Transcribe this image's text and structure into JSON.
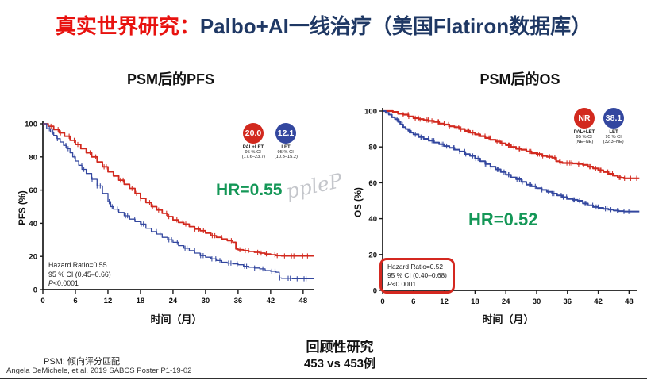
{
  "header": {
    "emphasis": "真实世界研究：",
    "main": "Palbo+AI一线治疗（美国Flatiron数据库）",
    "emphasis_color": "#e8120f",
    "main_color": "#1f3864"
  },
  "chart_data": [
    {
      "type": "line",
      "subtype": "kaplan-meier",
      "title": "PSM后的PFS",
      "xlabel": "时间（月）",
      "ylabel": "PFS (%)",
      "xlim": [
        0,
        50
      ],
      "ylim": [
        0,
        100
      ],
      "x_ticks": [
        0,
        6,
        12,
        18,
        24,
        30,
        36,
        42,
        48
      ],
      "y_ticks": [
        0,
        20,
        40,
        60,
        80,
        100
      ],
      "ci_label": "95 % CI",
      "hr_annotation": "HR=0.55",
      "hr_color": "#149757",
      "hazard_box": {
        "line1": "Hazard Ratio=0.55",
        "line2": "95 % CI (0.45–0.66)",
        "p_prefix": "P",
        "p_value": "<0.0001",
        "boxed": false
      },
      "series": [
        {
          "name": "PAL+LET",
          "color": "#d2291e",
          "median_months": "20.0",
          "ci_95": "(17.6–23.7)",
          "points": [
            [
              0,
              100
            ],
            [
              1,
              98.5
            ],
            [
              2,
              96.5
            ],
            [
              3,
              94.5
            ],
            [
              4,
              92.5
            ],
            [
              5,
              90
            ],
            [
              6,
              87.5
            ],
            [
              7,
              85
            ],
            [
              8,
              82.5
            ],
            [
              9,
              80
            ],
            [
              10,
              77
            ],
            [
              11,
              74
            ],
            [
              12,
              71
            ],
            [
              13,
              68.5
            ],
            [
              14,
              66
            ],
            [
              15,
              63.5
            ],
            [
              16,
              61
            ],
            [
              17,
              58
            ],
            [
              18,
              55
            ],
            [
              19,
              52.5
            ],
            [
              20,
              50
            ],
            [
              21,
              48
            ],
            [
              22,
              46
            ],
            [
              23,
              44
            ],
            [
              24,
              42
            ],
            [
              25,
              40.5
            ],
            [
              26,
              39.5
            ],
            [
              27,
              38
            ],
            [
              28,
              36.5
            ],
            [
              29,
              35.5
            ],
            [
              30,
              34
            ],
            [
              31,
              32.5
            ],
            [
              32,
              31.5
            ],
            [
              33,
              30.5
            ],
            [
              34,
              29.5
            ],
            [
              35,
              28.5
            ],
            [
              35.6,
              24.5
            ],
            [
              36,
              24
            ],
            [
              37,
              23.5
            ],
            [
              38,
              23
            ],
            [
              39,
              22.5
            ],
            [
              40,
              22
            ],
            [
              41,
              21.5
            ],
            [
              42,
              21
            ],
            [
              43,
              20.5
            ],
            [
              44,
              20.3
            ],
            [
              48,
              20.3
            ],
            [
              50,
              20.3
            ]
          ]
        },
        {
          "name": "LET",
          "color": "#33479f",
          "median_months": "12.1",
          "ci_95": "(10.3–15.2)",
          "points": [
            [
              0,
              100
            ],
            [
              0.7,
              97
            ],
            [
              1.4,
              95
            ],
            [
              2,
              93
            ],
            [
              2.6,
              91
            ],
            [
              3.2,
              89
            ],
            [
              3.8,
              87
            ],
            [
              4.4,
              85
            ],
            [
              5,
              82.5
            ],
            [
              5.5,
              80
            ],
            [
              6,
              77.5
            ],
            [
              6.6,
              75
            ],
            [
              7.2,
              72.5
            ],
            [
              8,
              70
            ],
            [
              9,
              66.5
            ],
            [
              10,
              62.5
            ],
            [
              11,
              58
            ],
            [
              12,
              53
            ],
            [
              12.5,
              50
            ],
            [
              13,
              48.5
            ],
            [
              14,
              46.5
            ],
            [
              15,
              44.5
            ],
            [
              16,
              42.5
            ],
            [
              17,
              41
            ],
            [
              18,
              39.5
            ],
            [
              19,
              37
            ],
            [
              20,
              35
            ],
            [
              21,
              33.5
            ],
            [
              22,
              31.5
            ],
            [
              23,
              30
            ],
            [
              24,
              28.5
            ],
            [
              25,
              26.5
            ],
            [
              26,
              25
            ],
            [
              27,
              23.5
            ],
            [
              28,
              22
            ],
            [
              29,
              20.5
            ],
            [
              30,
              19.5
            ],
            [
              31,
              18.5
            ],
            [
              32,
              17.5
            ],
            [
              33,
              16.5
            ],
            [
              34,
              16
            ],
            [
              35,
              15.5
            ],
            [
              36,
              15
            ],
            [
              37,
              14
            ],
            [
              38,
              13.5
            ],
            [
              39,
              13
            ],
            [
              40,
              12.5
            ],
            [
              41,
              11.5
            ],
            [
              42,
              11
            ],
            [
              43,
              10.5
            ],
            [
              43.6,
              7
            ],
            [
              44,
              6.8
            ],
            [
              46,
              6.5
            ],
            [
              48,
              6.5
            ],
            [
              50,
              6.5
            ]
          ]
        }
      ]
    },
    {
      "type": "line",
      "subtype": "kaplan-meier",
      "title": "PSM后的OS",
      "xlabel": "时间（月）",
      "ylabel": "OS (%)",
      "xlim": [
        0,
        50
      ],
      "ylim": [
        0,
        100
      ],
      "x_ticks": [
        0,
        6,
        12,
        18,
        24,
        30,
        36,
        42,
        48
      ],
      "y_ticks": [
        0,
        20,
        40,
        60,
        80,
        100
      ],
      "ci_label": "95 % CI",
      "hr_annotation": "HR=0.52",
      "hr_color": "#149757",
      "hazard_box": {
        "line1": "Hazard Ratio=0.52",
        "line2": "95 % CI (0.40–0.68)",
        "p_prefix": "P",
        "p_value": "<0.0001",
        "boxed": true,
        "box_color": "#d42820"
      },
      "series": [
        {
          "name": "PAL+LET",
          "color": "#d2291e",
          "median_months": "NR",
          "ci_95": "(NE–NE)",
          "points": [
            [
              0,
              100
            ],
            [
              1,
              100
            ],
            [
              2,
              99.5
            ],
            [
              3,
              98.5
            ],
            [
              4,
              98
            ],
            [
              5,
              97
            ],
            [
              6,
              96
            ],
            [
              7,
              95.5
            ],
            [
              8,
              95
            ],
            [
              9,
              94.5
            ],
            [
              10,
              94
            ],
            [
              11,
              93
            ],
            [
              12,
              92.5
            ],
            [
              13,
              91.5
            ],
            [
              14,
              91
            ],
            [
              15,
              90
            ],
            [
              16,
              89
            ],
            [
              17,
              88
            ],
            [
              18,
              87
            ],
            [
              19,
              86
            ],
            [
              20,
              85
            ],
            [
              21,
              84
            ],
            [
              22,
              83
            ],
            [
              23,
              82
            ],
            [
              24,
              81
            ],
            [
              25,
              80
            ],
            [
              26,
              79
            ],
            [
              27,
              78.5
            ],
            [
              28,
              77.5
            ],
            [
              29,
              76.5
            ],
            [
              30,
              76
            ],
            [
              31,
              75
            ],
            [
              32,
              74.5
            ],
            [
              33,
              74
            ],
            [
              33.8,
              72
            ],
            [
              34.5,
              71.5
            ],
            [
              35,
              71
            ],
            [
              36,
              71
            ],
            [
              37,
              70.8
            ],
            [
              38,
              70.5
            ],
            [
              39,
              70
            ],
            [
              40,
              69
            ],
            [
              41,
              68
            ],
            [
              42,
              67
            ],
            [
              43,
              66
            ],
            [
              44,
              65
            ],
            [
              45,
              64
            ],
            [
              45.8,
              63
            ],
            [
              46.5,
              62.8
            ],
            [
              47,
              62.5
            ],
            [
              48,
              62.5
            ],
            [
              50,
              62.5
            ]
          ]
        },
        {
          "name": "LET",
          "color": "#33479f",
          "median_months": "38.1",
          "ci_95": "(32.3–NE)",
          "points": [
            [
              0,
              100
            ],
            [
              0.6,
              99
            ],
            [
              1.2,
              98
            ],
            [
              1.8,
              96.5
            ],
            [
              2.4,
              95.5
            ],
            [
              3,
              94
            ],
            [
              3.5,
              92.5
            ],
            [
              4,
              91
            ],
            [
              4.5,
              90
            ],
            [
              5,
              89
            ],
            [
              5.5,
              88
            ],
            [
              6,
              87
            ],
            [
              7,
              85.5
            ],
            [
              8,
              84.5
            ],
            [
              9,
              83.5
            ],
            [
              10,
              82.5
            ],
            [
              11,
              81.5
            ],
            [
              12,
              80.5
            ],
            [
              13,
              79.5
            ],
            [
              14,
              78.5
            ],
            [
              15,
              77.5
            ],
            [
              16,
              76
            ],
            [
              17,
              75
            ],
            [
              18,
              73.5
            ],
            [
              19,
              72
            ],
            [
              20,
              70.5
            ],
            [
              21,
              69
            ],
            [
              22,
              67.5
            ],
            [
              23,
              66
            ],
            [
              24,
              64.5
            ],
            [
              25,
              63
            ],
            [
              26,
              62
            ],
            [
              27,
              60.5
            ],
            [
              28,
              59
            ],
            [
              29,
              58
            ],
            [
              30,
              57
            ],
            [
              31,
              56
            ],
            [
              32,
              55
            ],
            [
              33,
              54
            ],
            [
              34,
              53
            ],
            [
              35,
              52
            ],
            [
              36,
              51
            ],
            [
              37,
              50.5
            ],
            [
              38,
              50
            ],
            [
              39,
              48.5
            ],
            [
              40,
              47.5
            ],
            [
              41,
              46.5
            ],
            [
              42,
              46
            ],
            [
              43,
              45.5
            ],
            [
              44,
              45
            ],
            [
              45,
              44.5
            ],
            [
              46,
              44.2
            ],
            [
              47,
              44
            ],
            [
              48,
              44
            ],
            [
              50,
              44
            ]
          ]
        }
      ]
    }
  ],
  "footer": {
    "study_type": "回顾性研究",
    "sample": "453 vs 453例",
    "psm_note": "PSM: 倾向评分匹配",
    "citation": "Angela DeMichele, et al. 2019 SABCS Poster P1-19-02"
  },
  "watermark": {
    "text": "ppleP"
  }
}
